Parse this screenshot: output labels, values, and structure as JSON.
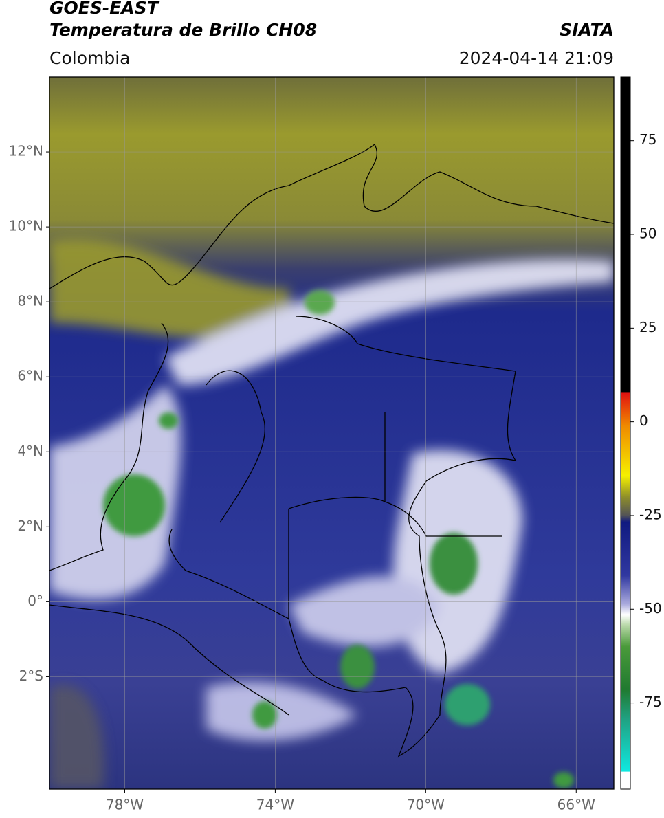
{
  "header": {
    "title": "GOES-EAST",
    "subtitle": "Temperatura de Brillo CH08",
    "source": "SIATA",
    "region": "Colombia",
    "datetime": "2024-04-14 21:09"
  },
  "map": {
    "xlim": [
      -80,
      -65
    ],
    "ylim": [
      -5,
      14
    ],
    "grid": true,
    "xticks": [
      {
        "value": -78,
        "label": "78°W"
      },
      {
        "value": -74,
        "label": "74°W"
      },
      {
        "value": -70,
        "label": "70°W"
      },
      {
        "value": -66,
        "label": "66°W"
      }
    ],
    "yticks": [
      {
        "value": 12,
        "label": "12°N"
      },
      {
        "value": 10,
        "label": "10°N"
      },
      {
        "value": 8,
        "label": "8°N"
      },
      {
        "value": 6,
        "label": "6°N"
      },
      {
        "value": 4,
        "label": "4°N"
      },
      {
        "value": 2,
        "label": "2°N"
      },
      {
        "value": 0,
        "label": "0°"
      },
      {
        "value": -2,
        "label": "2°S"
      }
    ]
  },
  "colorbar": {
    "clim": [
      -98,
      92
    ],
    "ticks": [
      75,
      50,
      25,
      0,
      -25,
      -50,
      -75
    ]
  }
}
